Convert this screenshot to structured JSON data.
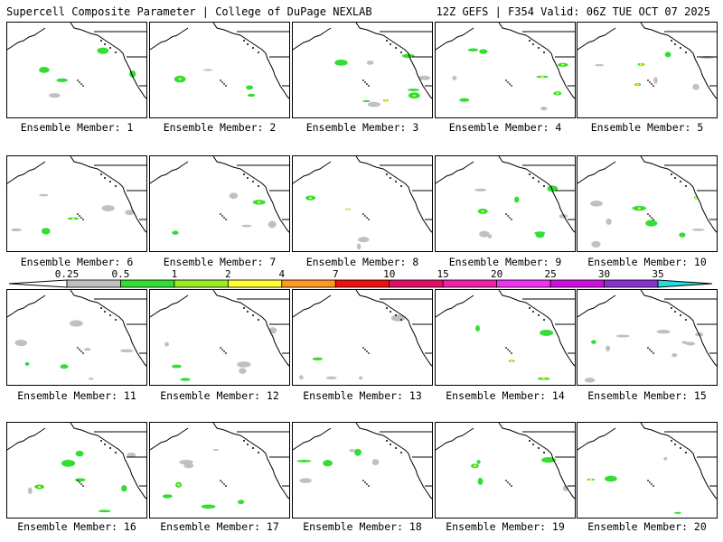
{
  "header": {
    "title": "Supercell Composite Parameter | College of DuPage NEXLAB",
    "run_info": "12Z GEFS | F354 Valid: 06Z TUE OCT 07 2025"
  },
  "colors": {
    "gray": "#c0c0c0",
    "green": "#33dd33",
    "lime": "#99ee22",
    "yellow": "#ffff33",
    "orange": "#ff9922",
    "red": "#ee1111",
    "crimson": "#dd1166",
    "magenta": "#ee22aa",
    "pink_magenta": "#ee33ee",
    "violet": "#cc11dd",
    "purple": "#8833cc",
    "lavender": "#aa66dd",
    "cyan": "#22dddd"
  },
  "colorbar": {
    "ticks": [
      "0.25",
      "0.5",
      "1",
      "2",
      "4",
      "7",
      "10",
      "15",
      "20",
      "25",
      "30",
      "35"
    ],
    "bins": [
      {
        "from": "0.25",
        "to": "0.5",
        "color": "#c0c0c0"
      },
      {
        "from": "0.5",
        "to": "1",
        "color": "#33dd33"
      },
      {
        "from": "1",
        "to": "2",
        "color": "#99ee22"
      },
      {
        "from": "2",
        "to": "4",
        "color": "#ffff33"
      },
      {
        "from": "4",
        "to": "7",
        "color": "#ff9922"
      },
      {
        "from": "7",
        "to": "10",
        "color": "#ee1111"
      },
      {
        "from": "10",
        "to": "15",
        "color": "#dd1166"
      },
      {
        "from": "15",
        "to": "20",
        "color": "#ee22aa"
      },
      {
        "from": "20",
        "to": "25",
        "color": "#ee33ee"
      },
      {
        "from": "25",
        "to": "30",
        "color": "#cc11dd"
      },
      {
        "from": "30",
        "to": "35",
        "color": "#8833cc"
      },
      {
        "from": "35",
        "to": "",
        "color": "#22dddd"
      }
    ]
  },
  "members": [
    {
      "label": "Ensemble Member: 1"
    },
    {
      "label": "Ensemble Member: 2"
    },
    {
      "label": "Ensemble Member: 3"
    },
    {
      "label": "Ensemble Member: 4"
    },
    {
      "label": "Ensemble Member: 5"
    },
    {
      "label": "Ensemble Member: 6"
    },
    {
      "label": "Ensemble Member: 7"
    },
    {
      "label": "Ensemble Member: 8"
    },
    {
      "label": "Ensemble Member: 9"
    },
    {
      "label": "Ensemble Member: 10"
    },
    {
      "label": "Ensemble Member: 11"
    },
    {
      "label": "Ensemble Member: 12"
    },
    {
      "label": "Ensemble Member: 13"
    },
    {
      "label": "Ensemble Member: 14"
    },
    {
      "label": "Ensemble Member: 15"
    },
    {
      "label": "Ensemble Member: 16"
    },
    {
      "label": "Ensemble Member: 17"
    },
    {
      "label": "Ensemble Member: 18"
    },
    {
      "label": "Ensemble Member: 19"
    },
    {
      "label": "Ensemble Member: 20"
    }
  ]
}
